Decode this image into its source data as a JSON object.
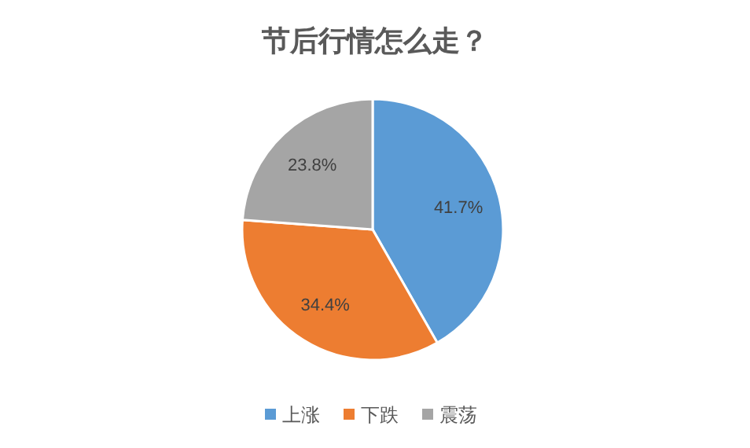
{
  "chart_data": {
    "type": "pie",
    "title": "节后行情怎么走？",
    "categories": [
      "上涨",
      "下跌",
      "震荡"
    ],
    "values": [
      41.7,
      34.4,
      23.8
    ],
    "colors": [
      "#5b9bd5",
      "#ed7d31",
      "#a5a5a5"
    ],
    "value_labels": [
      "41.7%",
      "34.4%",
      "23.8%"
    ],
    "legend": "bottom"
  }
}
